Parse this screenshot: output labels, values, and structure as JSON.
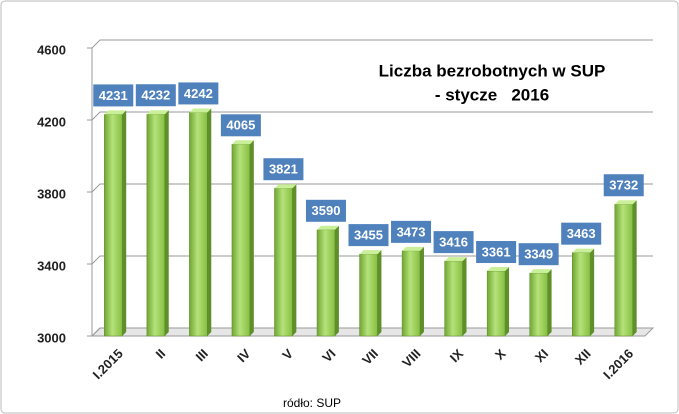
{
  "chart_data": {
    "type": "bar",
    "title": "Liczba bezrobotnych w SUP",
    "subtitle": "- stycze   2016",
    "source": "ródło: SUP",
    "categories": [
      "I.2015",
      "II",
      "III",
      "IV",
      "V",
      "VI",
      "VII",
      "VIII",
      "IX",
      "X",
      "XI",
      "XII",
      "I.2016"
    ],
    "values": [
      4231,
      4232,
      4242,
      4065,
      3821,
      3590,
      3455,
      3473,
      3416,
      3361,
      3349,
      3463,
      3732
    ],
    "color": "#92d050",
    "label_color": "#4f81bd",
    "ylim": [
      3000,
      4600
    ],
    "yticks": [
      3000,
      3400,
      3800,
      4200,
      4600
    ],
    "grid": true
  }
}
